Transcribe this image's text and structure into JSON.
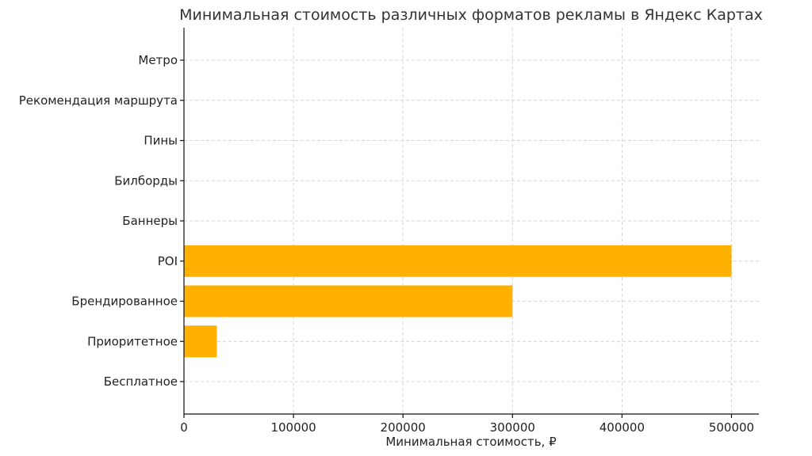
{
  "chart_data": {
    "type": "bar",
    "orientation": "horizontal",
    "title": "Минимальная стоимость различных форматов рекламы в Яндекс Картах",
    "xlabel": "Минимальная стоимость, ₽",
    "ylabel": "",
    "xlim": [
      0,
      525000
    ],
    "x_ticks": [
      "0",
      "100000",
      "200000",
      "300000",
      "400000",
      "500000"
    ],
    "x_tick_values": [
      0,
      100000,
      200000,
      300000,
      400000,
      500000
    ],
    "categories": [
      "Бесплатное",
      "Приоритетное",
      "Брендированное",
      "POI",
      "Баннеры",
      "Билборды",
      "Пины",
      "Рекомендация маршрута",
      "Метро"
    ],
    "values": [
      0,
      30000,
      300000,
      500000,
      0,
      0,
      0,
      0,
      0
    ],
    "bar_color": "#ffb000",
    "grid": true
  }
}
